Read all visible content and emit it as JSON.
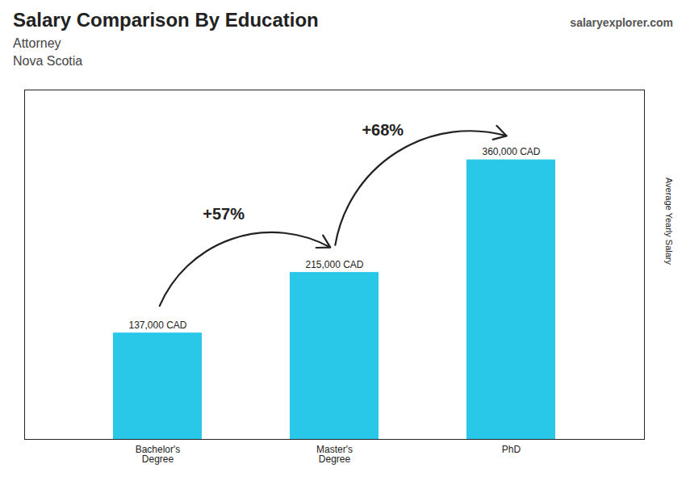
{
  "chart_data": {
    "type": "bar",
    "title": "Salary Comparison By Education",
    "subtitle": [
      "Attorney",
      "Nova Scotia"
    ],
    "ylabel": "Average Yearly Salary",
    "categories": [
      "Bachelor's\nDegree",
      "Master's\nDegree",
      "PhD"
    ],
    "values": [
      137000,
      215000,
      360000
    ],
    "value_labels": [
      "137,000 CAD",
      "215,000 CAD",
      "360,000 CAD"
    ],
    "data_labels": true,
    "color": "#29c8e8",
    "ylim": [
      0,
      450000
    ],
    "grid": false,
    "tick_labels": "x",
    "annotations": [
      {
        "text": "+57%",
        "from": "Bachelor's\nDegree",
        "to": "Master's\nDegree"
      },
      {
        "text": "+68%",
        "from": "Master's\nDegree",
        "to": "PhD"
      },
      {
        "text": "salaryexplorer.com"
      }
    ]
  }
}
